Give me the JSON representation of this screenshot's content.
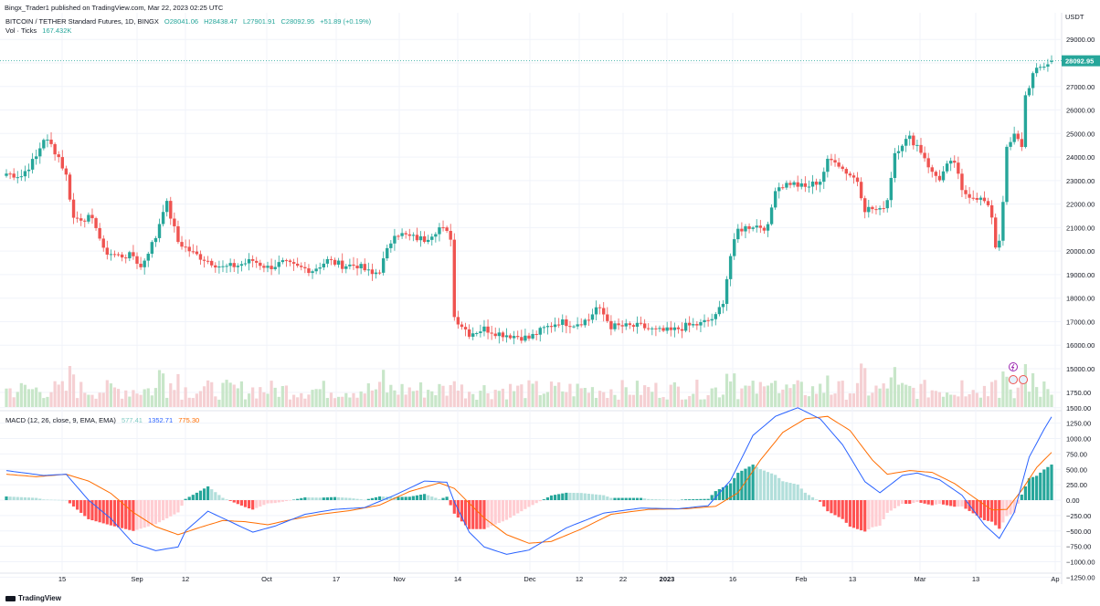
{
  "header": {
    "publisher": "Bingx_Trader1 published on TradingView.com, Mar 22, 2023 02:25 UTC"
  },
  "legend": {
    "symbol": "BITCOIN / TETHER Standard Futures, 1D, BINGX",
    "open": "O28041.06",
    "high": "H28438.47",
    "low": "L27901.91",
    "close": "C28092.95",
    "change": "+51.89 (+0.19%)",
    "vol_label": "Vol · Ticks",
    "vol_value": "167.432K",
    "macd_label": "MACD (12, 26, close, 9, EMA, EMA)",
    "macd_hist": "577.41",
    "macd_line": "1352.71",
    "macd_signal": "775.30"
  },
  "price_axis": {
    "currency": "USDT",
    "ticks": [
      "29000.00",
      "28000.00",
      "27000.00",
      "26000.00",
      "25000.00",
      "24000.00",
      "23000.00",
      "22000.00",
      "21000.00",
      "20000.00",
      "19000.00",
      "18000.00",
      "17000.00",
      "16000.00",
      "15000.00"
    ],
    "last_price": "28092.95"
  },
  "macd_axis": {
    "ticks": [
      "1750.00",
      "1500.00",
      "1250.00",
      "1000.00",
      "750.00",
      "500.00",
      "250.00",
      "0.00",
      "−250.00",
      "−500.00",
      "−750.00",
      "−1000.00",
      "−1250.00"
    ]
  },
  "time_axis": {
    "labels": [
      "15",
      "Sep",
      "12",
      "Oct",
      "17",
      "Nov",
      "14",
      "Dec",
      "12",
      "22",
      "2023",
      "16",
      "Feb",
      "13",
      "Mar",
      "13",
      "Ap"
    ]
  },
  "colors": {
    "up": "#26a69a",
    "down": "#ef5350",
    "vol_up": "#c8e6c9",
    "vol_down": "#f5d0d3",
    "macd_line": "#2962ff",
    "signal_line": "#ff6d00",
    "hist_up_strong": "#26a69a",
    "hist_up_weak": "#b2dfdb",
    "hist_down_strong": "#ff5252",
    "hist_down_weak": "#ffcdd2"
  },
  "brand": "TradingView",
  "chart_data": {
    "type": "candlestick",
    "title": "BITCOIN / TETHER Standard Futures, 1D, BINGX",
    "ylim": [
      14500,
      29600
    ],
    "x_label_dates": [
      "Aug 15",
      "Sep",
      "Sep 12",
      "Oct",
      "Oct 17",
      "Nov",
      "Nov 14",
      "Dec",
      "Dec 12",
      "Dec 22",
      "2023",
      "Jan 16",
      "Feb",
      "Feb 13",
      "Mar",
      "Mar 13",
      "Apr"
    ],
    "price_anchors": [
      [
        0,
        23300
      ],
      [
        4,
        23200
      ],
      [
        8,
        24000
      ],
      [
        10,
        24800
      ],
      [
        12,
        24500
      ],
      [
        14,
        24000
      ],
      [
        16,
        23200
      ],
      [
        18,
        21400
      ],
      [
        22,
        21400
      ],
      [
        24,
        21100
      ],
      [
        26,
        20000
      ],
      [
        30,
        19800
      ],
      [
        34,
        19800
      ],
      [
        36,
        19300
      ],
      [
        38,
        20000
      ],
      [
        40,
        20600
      ],
      [
        42,
        21800
      ],
      [
        43,
        22000
      ],
      [
        46,
        20400
      ],
      [
        50,
        19900
      ],
      [
        54,
        19600
      ],
      [
        58,
        19300
      ],
      [
        62,
        19400
      ],
      [
        66,
        19600
      ],
      [
        70,
        19300
      ],
      [
        74,
        19500
      ],
      [
        78,
        19300
      ],
      [
        82,
        19200
      ],
      [
        86,
        19600
      ],
      [
        90,
        19400
      ],
      [
        94,
        19400
      ],
      [
        98,
        19000
      ],
      [
        100,
        19200
      ],
      [
        104,
        20800
      ],
      [
        108,
        20600
      ],
      [
        112,
        20500
      ],
      [
        116,
        21000
      ],
      [
        117,
        20900
      ],
      [
        119,
        20600
      ],
      [
        120,
        17200
      ],
      [
        124,
        16500
      ],
      [
        128,
        16700
      ],
      [
        132,
        16500
      ],
      [
        136,
        16400
      ],
      [
        140,
        16300
      ],
      [
        144,
        16700
      ],
      [
        148,
        17000
      ],
      [
        152,
        16900
      ],
      [
        156,
        17100
      ],
      [
        158,
        17600
      ],
      [
        160,
        17300
      ],
      [
        162,
        16800
      ],
      [
        166,
        16800
      ],
      [
        170,
        16800
      ],
      [
        174,
        16600
      ],
      [
        178,
        16600
      ],
      [
        182,
        16800
      ],
      [
        186,
        16900
      ],
      [
        190,
        17200
      ],
      [
        192,
        17900
      ],
      [
        194,
        19800
      ],
      [
        196,
        20900
      ],
      [
        200,
        21100
      ],
      [
        204,
        21000
      ],
      [
        206,
        22700
      ],
      [
        210,
        22900
      ],
      [
        214,
        22700
      ],
      [
        218,
        23000
      ],
      [
        220,
        23800
      ],
      [
        222,
        23900
      ],
      [
        224,
        23500
      ],
      [
        228,
        23000
      ],
      [
        230,
        21800
      ],
      [
        232,
        21800
      ],
      [
        234,
        21700
      ],
      [
        236,
        22200
      ],
      [
        238,
        24200
      ],
      [
        240,
        24600
      ],
      [
        242,
        24800
      ],
      [
        244,
        24500
      ],
      [
        246,
        24000
      ],
      [
        248,
        23300
      ],
      [
        250,
        23100
      ],
      [
        252,
        23600
      ],
      [
        254,
        23800
      ],
      [
        256,
        22500
      ],
      [
        258,
        22400
      ],
      [
        260,
        22300
      ],
      [
        262,
        22100
      ],
      [
        264,
        21500
      ],
      [
        265,
        20200
      ],
      [
        266,
        20500
      ],
      [
        267,
        22200
      ],
      [
        268,
        24300
      ],
      [
        270,
        24900
      ],
      [
        272,
        24500
      ],
      [
        273,
        26600
      ],
      [
        275,
        27500
      ],
      [
        277,
        27800
      ],
      [
        280,
        28093
      ]
    ],
    "macd_anchors": [
      [
        0,
        480
      ],
      [
        10,
        400
      ],
      [
        16,
        420
      ],
      [
        22,
        0
      ],
      [
        28,
        -300
      ],
      [
        34,
        -700
      ],
      [
        40,
        -820
      ],
      [
        46,
        -760
      ],
      [
        48,
        -500
      ],
      [
        54,
        -180
      ],
      [
        60,
        -350
      ],
      [
        66,
        -520
      ],
      [
        72,
        -420
      ],
      [
        80,
        -230
      ],
      [
        88,
        -150
      ],
      [
        96,
        -120
      ],
      [
        104,
        80
      ],
      [
        112,
        310
      ],
      [
        118,
        290
      ],
      [
        120,
        -30
      ],
      [
        124,
        -520
      ],
      [
        128,
        -760
      ],
      [
        134,
        -880
      ],
      [
        140,
        -810
      ],
      [
        150,
        -450
      ],
      [
        160,
        -210
      ],
      [
        170,
        -130
      ],
      [
        180,
        -140
      ],
      [
        188,
        -90
      ],
      [
        194,
        320
      ],
      [
        200,
        1050
      ],
      [
        206,
        1360
      ],
      [
        212,
        1500
      ],
      [
        218,
        1320
      ],
      [
        224,
        900
      ],
      [
        230,
        300
      ],
      [
        234,
        120
      ],
      [
        240,
        400
      ],
      [
        244,
        440
      ],
      [
        250,
        330
      ],
      [
        256,
        80
      ],
      [
        262,
        -400
      ],
      [
        266,
        -620
      ],
      [
        270,
        -200
      ],
      [
        274,
        700
      ],
      [
        278,
        1150
      ],
      [
        280,
        1352.71
      ]
    ],
    "signal_anchors": [
      [
        0,
        420
      ],
      [
        8,
        380
      ],
      [
        16,
        420
      ],
      [
        22,
        310
      ],
      [
        28,
        110
      ],
      [
        34,
        -200
      ],
      [
        40,
        -430
      ],
      [
        46,
        -560
      ],
      [
        52,
        -440
      ],
      [
        58,
        -330
      ],
      [
        64,
        -350
      ],
      [
        70,
        -400
      ],
      [
        76,
        -320
      ],
      [
        84,
        -230
      ],
      [
        92,
        -170
      ],
      [
        100,
        -80
      ],
      [
        108,
        140
      ],
      [
        116,
        280
      ],
      [
        120,
        190
      ],
      [
        124,
        -50
      ],
      [
        128,
        -290
      ],
      [
        134,
        -560
      ],
      [
        140,
        -700
      ],
      [
        146,
        -670
      ],
      [
        154,
        -470
      ],
      [
        162,
        -230
      ],
      [
        172,
        -150
      ],
      [
        182,
        -140
      ],
      [
        190,
        -100
      ],
      [
        196,
        120
      ],
      [
        202,
        650
      ],
      [
        208,
        1100
      ],
      [
        214,
        1320
      ],
      [
        220,
        1360
      ],
      [
        226,
        1130
      ],
      [
        232,
        650
      ],
      [
        236,
        420
      ],
      [
        242,
        480
      ],
      [
        248,
        450
      ],
      [
        254,
        270
      ],
      [
        260,
        10
      ],
      [
        264,
        -160
      ],
      [
        268,
        -150
      ],
      [
        272,
        160
      ],
      [
        276,
        530
      ],
      [
        280,
        775.3
      ]
    ]
  }
}
